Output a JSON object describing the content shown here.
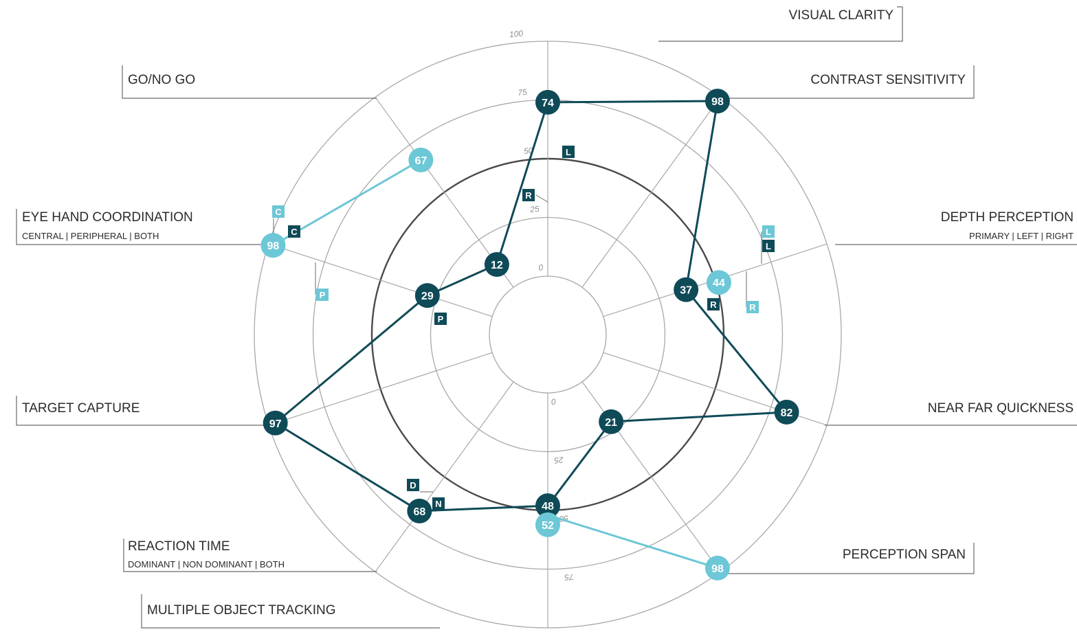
{
  "colors": {
    "dark": "#0f4a57",
    "light": "#6cc7d6",
    "grid": "#a8a8a8",
    "mid_ring": "#4a4a4a",
    "label_line": "#6a6a6a"
  },
  "chart_data": {
    "type": "radar",
    "title": "",
    "rings": [
      "0",
      "25",
      "50",
      "75",
      "100"
    ],
    "axes": [
      {
        "name": "VISUAL CLARITY",
        "sub": ""
      },
      {
        "name": "CONTRAST SENSITIVITY",
        "sub": ""
      },
      {
        "name": "DEPTH PERCEPTION",
        "sub": "PRIMARY | LEFT | RIGHT"
      },
      {
        "name": "NEAR FAR QUICKNESS",
        "sub": ""
      },
      {
        "name": "PERCEPTION SPAN",
        "sub": ""
      },
      {
        "name": "MULTIPLE OBJECT TRACKING",
        "sub": ""
      },
      {
        "name": "REACTION TIME",
        "sub": "DOMINANT | NON DOMINANT |  BOTH"
      },
      {
        "name": "TARGET CAPTURE",
        "sub": ""
      },
      {
        "name": "EYE HAND COORDINATION",
        "sub": "CENTRAL | PERIPHERAL | BOTH"
      },
      {
        "name": "GO/NO GO",
        "sub": ""
      }
    ],
    "series": [
      {
        "color": "dark",
        "points": [
          {
            "axis": "VISUAL CLARITY",
            "value": 74
          },
          {
            "axis": "CONTRAST SENSITIVITY",
            "value": 98
          },
          {
            "axis": "DEPTH PERCEPTION",
            "value": 37
          },
          {
            "axis": "NEAR FAR QUICKNESS",
            "value": 82
          },
          {
            "axis": "PERCEPTION SPAN",
            "value": 21
          },
          {
            "axis": "MULTIPLE OBJECT TRACKING",
            "value": 48
          },
          {
            "axis": "REACTION TIME",
            "value": 68
          },
          {
            "axis": "TARGET CAPTURE",
            "value": 97
          },
          {
            "axis": "EYE HAND COORDINATION",
            "value": 29
          },
          {
            "axis": "GO/NO GO",
            "value": 12
          }
        ]
      },
      {
        "color": "light",
        "segments": [
          [
            {
              "axis": "GO/NO GO",
              "value": 67
            },
            {
              "axis": "EYE HAND COORDINATION",
              "value": 98
            }
          ],
          [
            {
              "axis": "MULTIPLE OBJECT TRACKING",
              "value": 52
            },
            {
              "axis": "PERCEPTION SPAN",
              "value": 98
            }
          ]
        ]
      },
      {
        "color": "light",
        "points": [
          {
            "axis": "DEPTH PERCEPTION",
            "value": 44
          }
        ]
      }
    ],
    "sub_markers": [
      {
        "axis": "VISUAL CLARITY",
        "text": "L",
        "style": "dark",
        "value": 50
      },
      {
        "axis": "VISUAL CLARITY",
        "text": "R",
        "style": "dark",
        "value": 36
      },
      {
        "axis": "DEPTH PERCEPTION",
        "text": "L",
        "style": "light",
        "value": 84
      },
      {
        "axis": "DEPTH PERCEPTION",
        "text": "L",
        "style": "dark",
        "value": 84
      },
      {
        "axis": "DEPTH PERCEPTION",
        "text": "R",
        "style": "light",
        "value": 70
      },
      {
        "axis": "DEPTH PERCEPTION",
        "text": "R",
        "style": "dark",
        "value": 42
      },
      {
        "axis": "EYE HAND COORDINATION",
        "text": "C",
        "style": "light",
        "value": 98
      },
      {
        "axis": "EYE HAND COORDINATION",
        "text": "C",
        "style": "dark",
        "value": 98
      },
      {
        "axis": "EYE HAND COORDINATION",
        "text": "P",
        "style": "light",
        "value": 75
      },
      {
        "axis": "EYE HAND COORDINATION",
        "text": "P",
        "style": "dark",
        "value": 29
      },
      {
        "axis": "REACTION TIME",
        "text": "D",
        "style": "dark",
        "value": 68
      },
      {
        "axis": "REACTION TIME",
        "text": "N",
        "style": "dark",
        "value": 68
      }
    ]
  }
}
